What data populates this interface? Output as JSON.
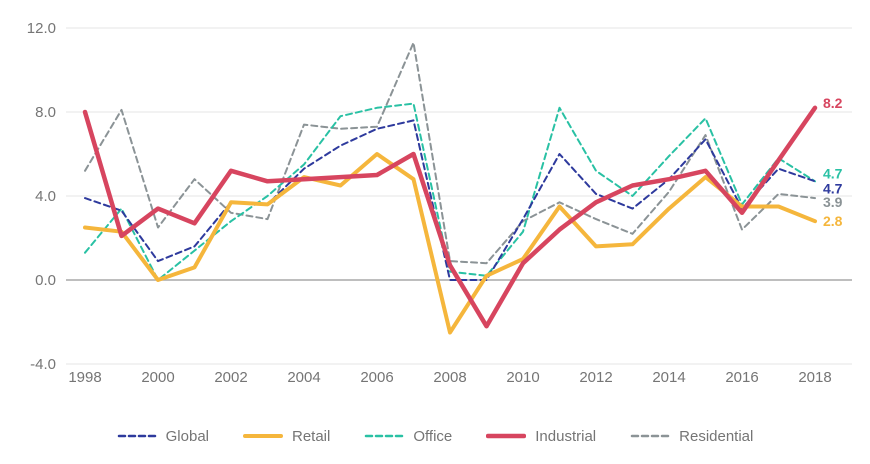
{
  "chart_data": {
    "type": "line",
    "x": [
      1998,
      1999,
      2000,
      2001,
      2002,
      2003,
      2004,
      2005,
      2006,
      2007,
      2008,
      2009,
      2010,
      2011,
      2012,
      2013,
      2014,
      2015,
      2016,
      2017,
      2018
    ],
    "x_tick_labels": [
      "1998",
      "2000",
      "2002",
      "2004",
      "2006",
      "2008",
      "2010",
      "2012",
      "2014",
      "2016",
      "2018"
    ],
    "y_ticks": [
      {
        "value": 12,
        "label": "12.0"
      },
      {
        "value": 8,
        "label": "8.0"
      },
      {
        "value": 4,
        "label": "4.0"
      },
      {
        "value": 0,
        "label": "0.0"
      },
      {
        "value": -4,
        "label": "-4.0"
      }
    ],
    "ylim": [
      -4,
      12
    ],
    "grid": true,
    "zero_line": true,
    "legend_position": "bottom",
    "series": [
      {
        "name": "Global",
        "style": "dashed",
        "color": "#2e3a9d",
        "end_label": "4.7",
        "values": [
          3.9,
          3.3,
          0.9,
          1.6,
          3.7,
          3.6,
          5.3,
          6.4,
          7.2,
          7.6,
          0.0,
          0.0,
          2.9,
          6.0,
          4.1,
          3.4,
          4.8,
          6.7,
          3.4,
          5.3,
          4.7
        ]
      },
      {
        "name": "Retail",
        "style": "solid",
        "color": "#f5b63c",
        "end_label": "2.8",
        "values": [
          2.5,
          2.3,
          0.0,
          0.6,
          3.7,
          3.6,
          4.9,
          4.5,
          6.0,
          4.8,
          -2.5,
          0.2,
          1.0,
          3.5,
          1.6,
          1.7,
          3.4,
          4.9,
          3.5,
          3.5,
          2.8
        ]
      },
      {
        "name": "Office",
        "style": "dashed",
        "color": "#29c1a4",
        "end_label": "4.7",
        "values": [
          1.3,
          3.4,
          0.0,
          1.4,
          2.8,
          4.0,
          5.5,
          7.8,
          8.2,
          8.4,
          0.4,
          0.2,
          2.3,
          8.2,
          5.2,
          4.0,
          5.9,
          7.7,
          3.6,
          5.8,
          4.7
        ]
      },
      {
        "name": "Industrial",
        "style": "solid-thick",
        "color": "#d7455f",
        "end_label": "8.2",
        "values": [
          8.0,
          2.1,
          3.4,
          2.7,
          5.2,
          4.7,
          4.8,
          4.9,
          5.0,
          6.0,
          0.7,
          -2.2,
          0.8,
          2.4,
          3.7,
          4.5,
          4.8,
          5.2,
          3.2,
          5.7,
          8.2
        ]
      },
      {
        "name": "Residential",
        "style": "dashed",
        "color": "#8b9396",
        "end_label": "3.9",
        "values": [
          5.2,
          8.1,
          2.5,
          4.8,
          3.2,
          2.9,
          7.4,
          7.2,
          7.3,
          11.3,
          0.9,
          0.8,
          2.8,
          3.7,
          2.9,
          2.2,
          4.2,
          6.9,
          2.4,
          4.1,
          3.9
        ]
      }
    ],
    "colors": {
      "grid_line": "#e4e4e4",
      "zero_line": "#a8a8a8",
      "tick_text": "#757575",
      "background": "#ffffff"
    }
  }
}
